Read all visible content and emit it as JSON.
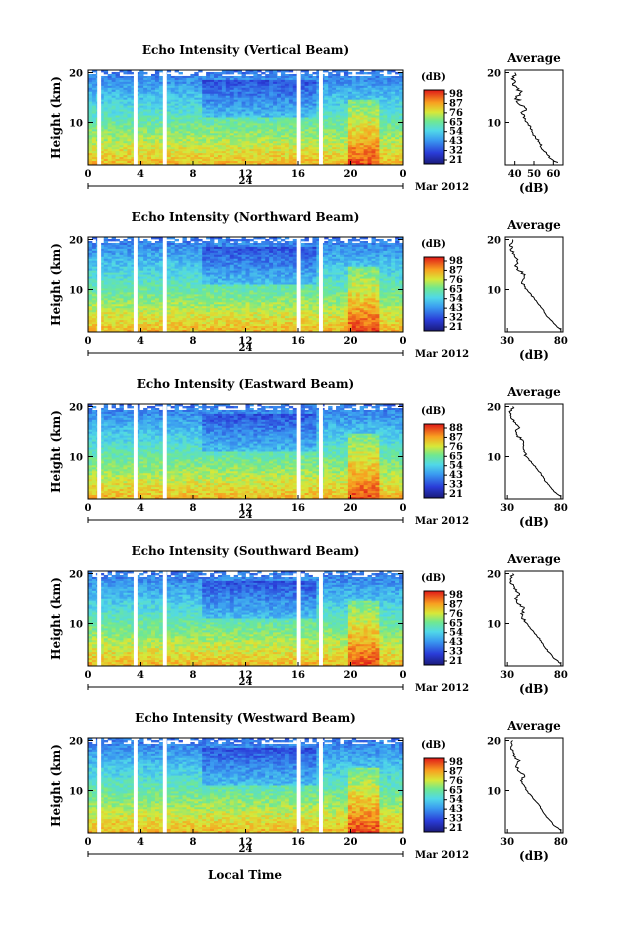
{
  "figure": {
    "x_label": "Local Time",
    "date_label": "Mar 2012",
    "day_label": "24",
    "y_label": "Height (km)",
    "x_ticks": [
      "0",
      "4",
      "8",
      "12",
      "16",
      "20",
      "0"
    ],
    "y_ticks": [
      "20",
      "10"
    ],
    "colorbar_unit": "(dB)",
    "avg_title": "Average",
    "avg_xlabel": "(dB)"
  },
  "chart_data": [
    {
      "type": "heatmap",
      "title": "Echo Intensity (Vertical Beam)",
      "xlim": [
        0,
        24
      ],
      "ylim": [
        1.5,
        20.5
      ],
      "colorbar_ticks": [
        "98",
        "87",
        "76",
        "65",
        "54",
        "43",
        "32",
        "21"
      ],
      "data_gaps_hours": [
        [
          0.7,
          1.0
        ],
        [
          3.5,
          3.8
        ],
        [
          5.7,
          6.0
        ],
        [
          15.9,
          16.2
        ],
        [
          17.6,
          17.9
        ]
      ],
      "avg_profile": {
        "xlim": [
          35,
          65
        ],
        "xticks": [
          "40",
          "50",
          "60"
        ],
        "height_km": [
          2,
          3,
          4,
          5,
          6,
          7,
          8,
          9,
          10,
          11,
          12,
          13,
          14,
          15,
          16,
          17,
          18,
          19,
          20
        ],
        "db": [
          62,
          58,
          56,
          54,
          53,
          51,
          49,
          48,
          47,
          45,
          44,
          46,
          42,
          41,
          43,
          40,
          40,
          39,
          40
        ]
      }
    },
    {
      "type": "heatmap",
      "title": "Echo Intensity (Northward Beam)",
      "xlim": [
        0,
        24
      ],
      "ylim": [
        1.5,
        20.5
      ],
      "colorbar_ticks": [
        "98",
        "87",
        "76",
        "65",
        "54",
        "43",
        "32",
        "21"
      ],
      "data_gaps_hours": [
        [
          0.7,
          1.0
        ],
        [
          3.5,
          3.8
        ],
        [
          5.7,
          6.0
        ],
        [
          15.9,
          16.2
        ],
        [
          17.6,
          17.9
        ]
      ],
      "avg_profile": {
        "xlim": [
          28,
          82
        ],
        "xticks": [
          "30",
          "80"
        ],
        "height_km": [
          2,
          3,
          4,
          5,
          6,
          7,
          8,
          9,
          10,
          11,
          12,
          13,
          14,
          15,
          16,
          17,
          18,
          19,
          20
        ],
        "db": [
          80,
          74,
          70,
          66,
          63,
          60,
          56,
          52,
          48,
          45,
          44,
          46,
          40,
          38,
          41,
          36,
          34,
          33,
          35
        ]
      }
    },
    {
      "type": "heatmap",
      "title": "Echo Intensity (Eastward Beam)",
      "xlim": [
        0,
        24
      ],
      "ylim": [
        1.5,
        20.5
      ],
      "colorbar_ticks": [
        "88",
        "87",
        "76",
        "65",
        "54",
        "43",
        "33",
        "21"
      ],
      "data_gaps_hours": [
        [
          0.7,
          1.0
        ],
        [
          3.5,
          3.8
        ],
        [
          5.7,
          6.0
        ],
        [
          15.9,
          16.2
        ],
        [
          17.6,
          17.9
        ]
      ],
      "avg_profile": {
        "xlim": [
          28,
          82
        ],
        "xticks": [
          "30",
          "80"
        ],
        "height_km": [
          2,
          3,
          4,
          5,
          6,
          7,
          8,
          9,
          10,
          11,
          12,
          13,
          14,
          15,
          16,
          17,
          18,
          19,
          20
        ],
        "db": [
          80,
          74,
          70,
          66,
          63,
          60,
          56,
          52,
          48,
          45,
          44,
          46,
          40,
          38,
          41,
          36,
          34,
          33,
          35
        ]
      }
    },
    {
      "type": "heatmap",
      "title": "Echo Intensity (Southward Beam)",
      "xlim": [
        0,
        24
      ],
      "ylim": [
        1.5,
        20.5
      ],
      "colorbar_ticks": [
        "98",
        "87",
        "76",
        "65",
        "54",
        "43",
        "33",
        "21"
      ],
      "data_gaps_hours": [
        [
          0.7,
          1.0
        ],
        [
          3.5,
          3.8
        ],
        [
          5.7,
          6.0
        ],
        [
          15.9,
          16.2
        ],
        [
          17.6,
          17.9
        ]
      ],
      "avg_profile": {
        "xlim": [
          28,
          82
        ],
        "xticks": [
          "30",
          "80"
        ],
        "height_km": [
          2,
          3,
          4,
          5,
          6,
          7,
          8,
          9,
          10,
          11,
          12,
          13,
          14,
          15,
          16,
          17,
          18,
          19,
          20
        ],
        "db": [
          80,
          74,
          70,
          66,
          63,
          60,
          56,
          52,
          48,
          45,
          44,
          46,
          40,
          38,
          41,
          36,
          34,
          33,
          35
        ]
      }
    },
    {
      "type": "heatmap",
      "title": "Echo Intensity (Westward Beam)",
      "xlim": [
        0,
        24
      ],
      "ylim": [
        1.5,
        20.5
      ],
      "colorbar_ticks": [
        "98",
        "87",
        "76",
        "65",
        "54",
        "43",
        "33",
        "21"
      ],
      "data_gaps_hours": [
        [
          0.7,
          1.0
        ],
        [
          3.5,
          3.8
        ],
        [
          5.7,
          6.0
        ],
        [
          15.9,
          16.2
        ],
        [
          17.6,
          17.9
        ]
      ],
      "avg_profile": {
        "xlim": [
          28,
          82
        ],
        "xticks": [
          "30",
          "80"
        ],
        "height_km": [
          2,
          3,
          4,
          5,
          6,
          7,
          8,
          9,
          10,
          11,
          12,
          13,
          14,
          15,
          16,
          17,
          18,
          19,
          20
        ],
        "db": [
          80,
          74,
          70,
          66,
          63,
          60,
          56,
          52,
          48,
          45,
          44,
          46,
          40,
          38,
          41,
          36,
          34,
          33,
          35
        ]
      }
    }
  ]
}
